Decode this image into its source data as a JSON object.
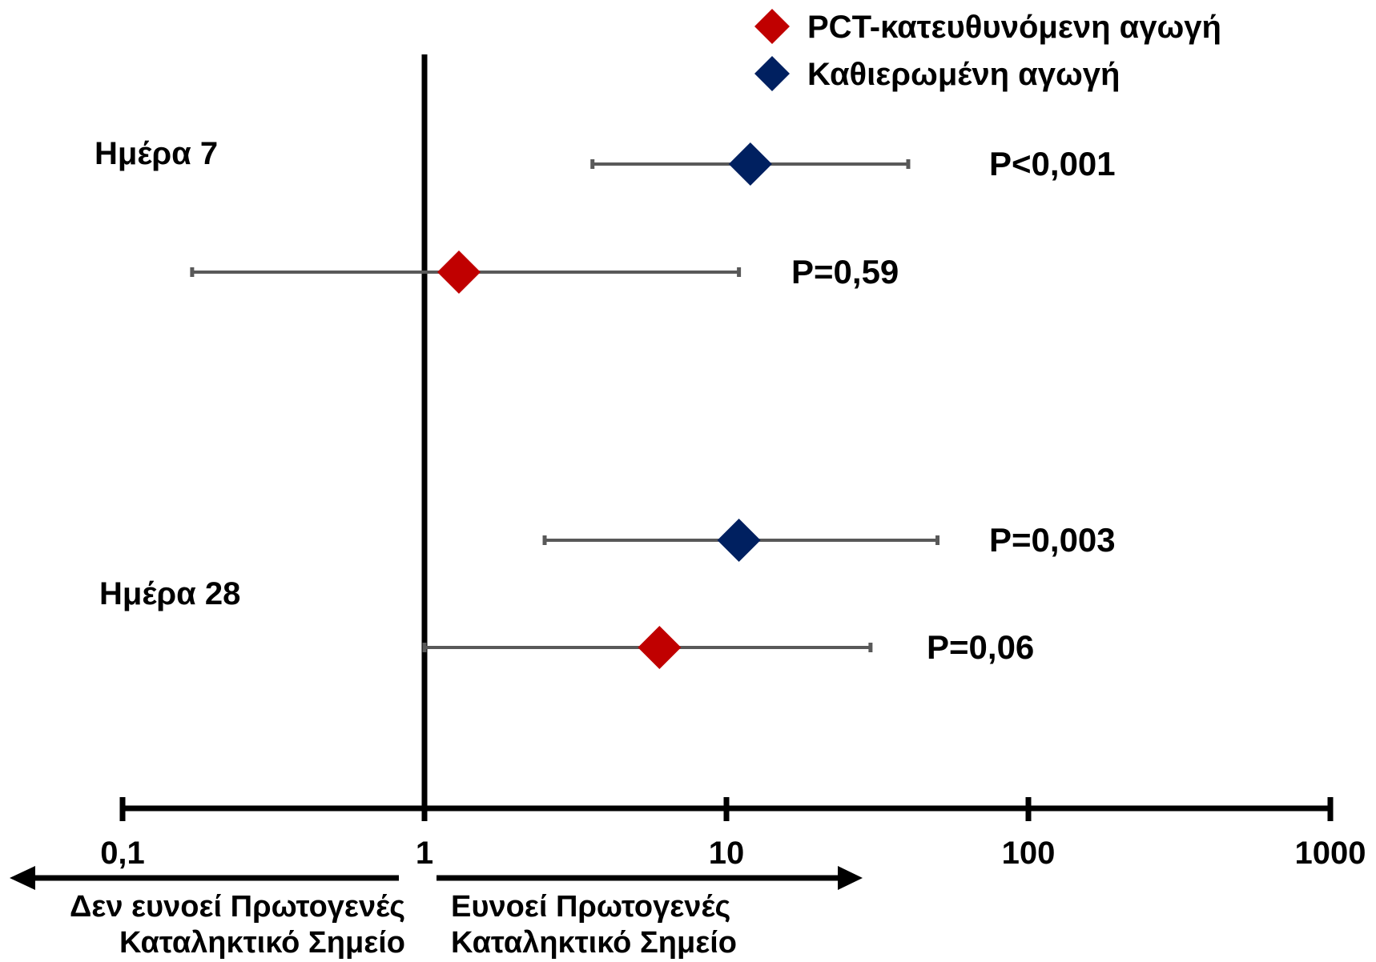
{
  "chart_data": {
    "type": "scatter",
    "subtype": "forest-plot",
    "x_scale": "log",
    "xlim": [
      0.1,
      1000
    ],
    "x_ticks": [
      "0,1",
      "1",
      "10",
      "100",
      "1000"
    ],
    "reference_line_x": 1,
    "groups": [
      {
        "label": "Ημέρα 7"
      },
      {
        "label": "Ημέρα 28"
      }
    ],
    "series": [
      {
        "name": "PCT-κατευθυνόμενη αγωγή",
        "color": "#c00000",
        "marker": "diamond"
      },
      {
        "name": "Καθιερωμένη αγωγή",
        "color": "#002060",
        "marker": "diamond"
      }
    ],
    "rows": [
      {
        "group": "Ημέρα 7",
        "series": "Καθιερωμένη αγωγή",
        "estimate": 12,
        "ci_low": 3.6,
        "ci_high": 40,
        "p_label": "P<0,001"
      },
      {
        "group": "Ημέρα 7",
        "series": "PCT-κατευθυνόμενη αγωγή",
        "estimate": 1.3,
        "ci_low": 0.17,
        "ci_high": 11,
        "p_label": "P=0,59"
      },
      {
        "group": "Ημέρα 28",
        "series": "Καθιερωμένη αγωγή",
        "estimate": 11,
        "ci_low": 2.5,
        "ci_high": 50,
        "p_label": "P=0,003"
      },
      {
        "group": "Ημέρα 28",
        "series": "PCT-κατευθυνόμενη αγωγή",
        "estimate": 6,
        "ci_low": 1,
        "ci_high": 30,
        "p_label": "P=0,06"
      }
    ],
    "direction_labels": {
      "left": [
        "Δεν ευνοεί Πρωτογενές",
        "Καταληκτικό Σημείο"
      ],
      "right": [
        "Ευνοεί Πρωτογενές",
        "Καταληκτικό Σημείο"
      ]
    },
    "legend_position": "top-right",
    "colors": {
      "ci_line": "#595959",
      "axis": "#000000"
    }
  }
}
